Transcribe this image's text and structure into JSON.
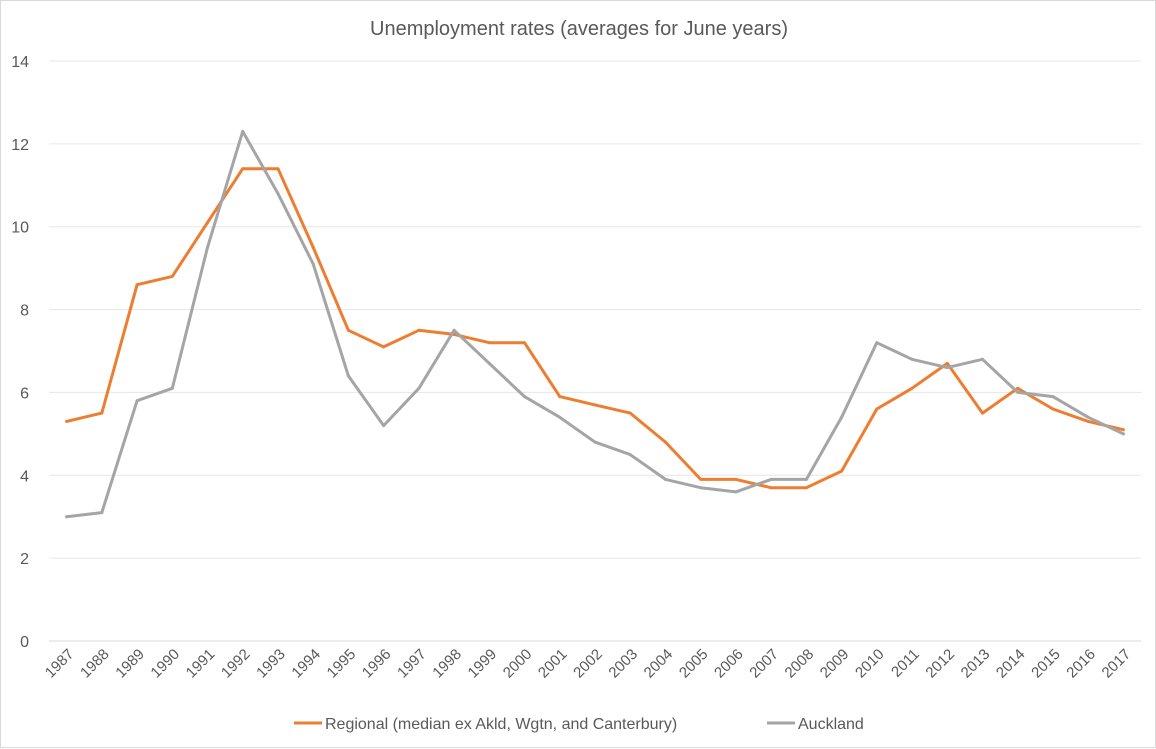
{
  "chart_data": {
    "type": "line",
    "title": "Unemployment rates (averages for June years)",
    "xlabel": "",
    "ylabel": "",
    "ylim": [
      0,
      14
    ],
    "yticks": [
      0,
      2,
      4,
      6,
      8,
      10,
      12,
      14
    ],
    "grid": true,
    "legend_position": "bottom",
    "categories": [
      "1987",
      "1988",
      "1989",
      "1990",
      "1991",
      "1992",
      "1993",
      "1994",
      "1995",
      "1996",
      "1997",
      "1998",
      "1999",
      "2000",
      "2001",
      "2002",
      "2003",
      "2004",
      "2005",
      "2006",
      "2007",
      "2008",
      "2009",
      "2010",
      "2011",
      "2012",
      "2013",
      "2014",
      "2015",
      "2016",
      "2017"
    ],
    "series": [
      {
        "name": "Regional (median ex Akld, Wgtn, and Canterbury)",
        "color": "#ed7d31",
        "values": [
          5.3,
          5.5,
          8.6,
          8.8,
          10.1,
          11.4,
          11.4,
          9.5,
          7.5,
          7.1,
          7.5,
          7.4,
          7.2,
          7.2,
          5.9,
          5.7,
          5.5,
          4.8,
          3.9,
          3.9,
          3.7,
          3.7,
          4.1,
          5.6,
          6.1,
          6.7,
          5.5,
          6.1,
          5.6,
          5.3,
          5.1
        ]
      },
      {
        "name": "Auckland",
        "color": "#a5a5a5",
        "values": [
          3.0,
          3.1,
          5.8,
          6.1,
          9.5,
          12.3,
          10.8,
          9.1,
          6.4,
          5.2,
          6.1,
          7.5,
          6.7,
          5.9,
          5.4,
          4.8,
          4.5,
          3.9,
          3.7,
          3.6,
          3.9,
          3.9,
          5.4,
          7.2,
          6.8,
          6.6,
          6.8,
          6.0,
          5.9,
          5.4,
          5.0
        ]
      }
    ]
  }
}
